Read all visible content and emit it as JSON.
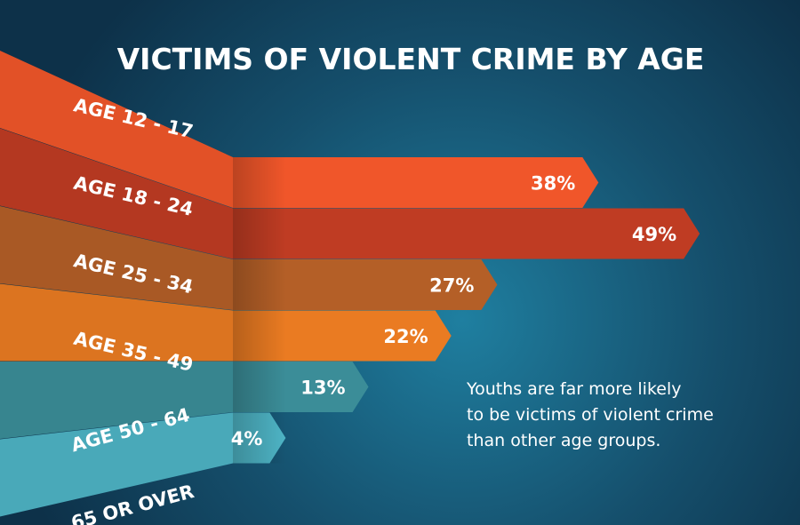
{
  "chart_data": {
    "type": "bar",
    "title": "VICTIMS OF VIOLENT CRIME BY AGE",
    "categories": [
      "AGE 12 - 17",
      "AGE 18 - 24",
      "AGE 25 - 34",
      "AGE 35 - 49",
      "AGE 50 - 64",
      "65 OR OVER"
    ],
    "values": [
      38,
      49,
      27,
      22,
      13,
      4
    ],
    "value_labels": [
      "38%",
      "49%",
      "27%",
      "22%",
      "13%",
      "4%"
    ],
    "unit": "%",
    "colors": [
      "#f0562a",
      "#bf3c23",
      "#b45f27",
      "#ea7b22",
      "#3b8d98",
      "#4eb4c5"
    ],
    "annotation": "Youths are far more likely to be victims of violent crime than other age groups.",
    "annotation_lines": [
      "Youths are far more likely",
      "to be victims of violent crime",
      "than other age groups."
    ],
    "grid": false,
    "legend": "none"
  }
}
